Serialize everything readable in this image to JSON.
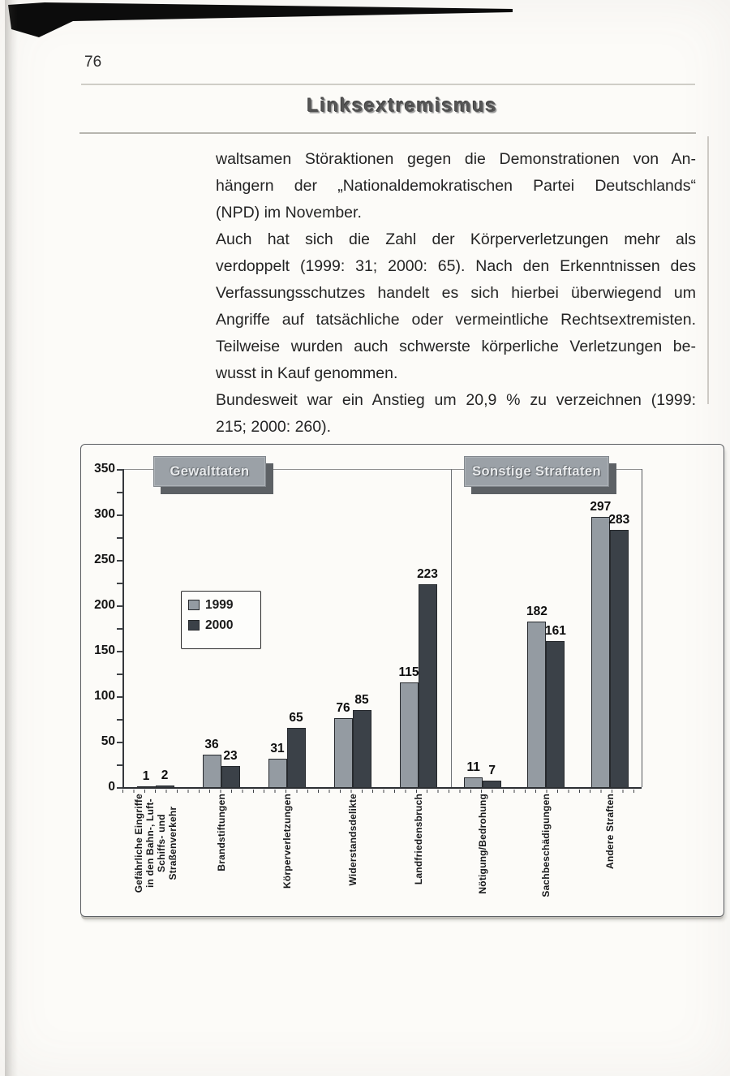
{
  "page": {
    "number": "76",
    "header_title": "Linksextremismus"
  },
  "body": {
    "lines": [
      {
        "text": "waltsamen Störaktionen gegen die Demonstrationen von An-",
        "justify": true
      },
      {
        "text": "hängern der „Nationaldemokratischen Partei Deutschlands“",
        "justify": true
      },
      {
        "text": "(NPD) im November.",
        "justify": false
      },
      {
        "text": "Auch hat sich die Zahl der Körperverletzungen mehr als",
        "justify": true
      },
      {
        "text": "verdoppelt (1999: 31; 2000: 65). Nach den Erkenntnissen des",
        "justify": true
      },
      {
        "text": "Verfassungsschutzes handelt es sich hierbei überwiegend um",
        "justify": true
      },
      {
        "text": "Angriffe auf tatsächliche oder vermeintliche Rechtsextremisten.",
        "justify": true
      },
      {
        "text": "Teilweise wurden auch schwerste körperliche Verletzungen be-",
        "justify": true
      },
      {
        "text": "wusst in Kauf genommen.",
        "justify": false
      },
      {
        "text": "Bundesweit war ein Anstieg um 20,9 % zu verzeichnen (1999:",
        "justify": true
      },
      {
        "text": "215; 2000: 260).",
        "justify": false
      }
    ]
  },
  "chart_data": {
    "type": "bar",
    "series_names": [
      "1999",
      "2000"
    ],
    "sections": [
      {
        "title": "Gewalttaten",
        "groups": [
          {
            "label": "Gefährliche Eingriffe\nin den Bahn-, Luft-\nSchiffs- und\nStraßenverkehr",
            "values": [
              1,
              2
            ]
          },
          {
            "label": "Brandstiftungen",
            "values": [
              36,
              23
            ]
          },
          {
            "label": "Körperverletzungen",
            "values": [
              31,
              65
            ]
          },
          {
            "label": "Widerstandsdelikte",
            "values": [
              76,
              85
            ]
          },
          {
            "label": "Landfriedensbruch",
            "values": [
              115,
              223
            ]
          }
        ]
      },
      {
        "title": "Sonstige Straftaten",
        "groups": [
          {
            "label": "Nötigung/Bedrohung",
            "values": [
              11,
              7
            ]
          },
          {
            "label": "Sachbeschädigungen",
            "values": [
              182,
              161
            ]
          },
          {
            "label": "Andere Straften",
            "values": [
              297,
              283
            ]
          }
        ]
      }
    ],
    "y_axis": {
      "min": 0,
      "max": 350,
      "tick_step": 50,
      "ticks": [
        350,
        300,
        250,
        200,
        150,
        100,
        50,
        0
      ]
    },
    "legend": {
      "position": "upper-left-of-plot",
      "entries": [
        {
          "label": "1999",
          "color": "#949ba2"
        },
        {
          "label": "2000",
          "color": "#3b4148"
        }
      ]
    },
    "grid": "single line at y=350 only"
  },
  "colors": {
    "bar_1999": "#949ba2",
    "bar_2000": "#3b4148",
    "section_box_fill": "#9ba1a7",
    "section_box_shadow": "#5d6165",
    "paper": "#fcfbf8"
  }
}
